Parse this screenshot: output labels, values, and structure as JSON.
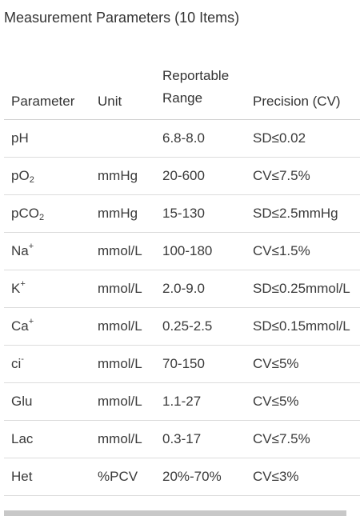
{
  "title": "Measurement Parameters (10 Items)",
  "table": {
    "headers": {
      "parameter": "Parameter",
      "unit": "Unit",
      "range_line1": "Reportable",
      "range_line2": "Range",
      "precision": "Precision (CV)"
    },
    "rows": [
      {
        "param_base": "pH",
        "param_mark": "",
        "unit": "",
        "range": "6.8-8.0",
        "precision": "SD≤0.02"
      },
      {
        "param_base": "pO",
        "param_mark": "2",
        "unit": "mmHg",
        "range": "20-600",
        "precision": "CV≤7.5%"
      },
      {
        "param_base": "pCO",
        "param_mark": "2",
        "unit": "mmHg",
        "range": "15-130",
        "precision": "SD≤2.5mmHg"
      },
      {
        "param_base": "Na",
        "param_mark": "+",
        "unit": "mmol/L",
        "range": "100-180",
        "precision": "CV≤1.5%"
      },
      {
        "param_base": "K",
        "param_mark": "+",
        "unit": "mmol/L",
        "range": "2.0-9.0",
        "precision": "SD≤0.25mmol/L"
      },
      {
        "param_base": "Ca",
        "param_mark": "+",
        "unit": "mmol/L",
        "range": "0.25-2.5",
        "precision": "SD≤0.15mmol/L"
      },
      {
        "param_base": "ci",
        "param_mark": "-",
        "unit": "mmol/L",
        "range": "70-150",
        "precision": "CV≤5%"
      },
      {
        "param_base": "Glu",
        "param_mark": "",
        "unit": "mmol/L",
        "range": "1.1-27",
        "precision": "CV≤5%"
      },
      {
        "param_base": "Lac",
        "param_mark": "",
        "unit": "mmol/L",
        "range": "0.3-17",
        "precision": "CV≤7.5%"
      },
      {
        "param_base": "Het",
        "param_mark": "",
        "unit": "%PCV",
        "range": "20%-70%",
        "precision": "CV≤3%"
      }
    ]
  },
  "colors": {
    "text": "#3a3a3a",
    "divider": "#dcdcdc",
    "scrollbar": "#c8c8c8"
  }
}
